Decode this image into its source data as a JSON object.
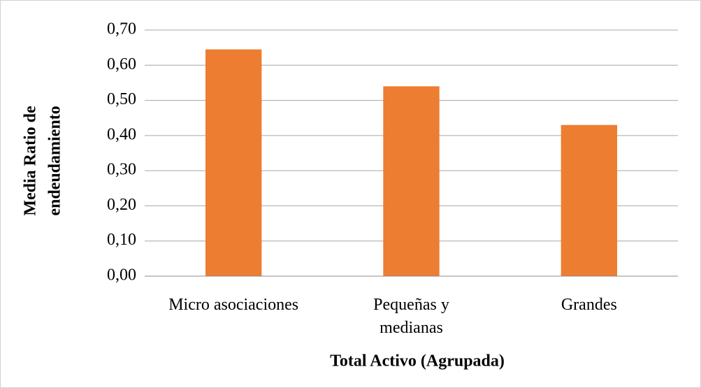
{
  "chart_data": {
    "type": "bar",
    "ylabel": [
      "Media Ratio de",
      "endeudamiento"
    ],
    "xlabel": "Total Activo (Agrupada)",
    "categories": [
      "Micro asociaciones",
      "Pequeñas y medianas",
      "Grandes"
    ],
    "values": [
      0.645,
      0.54,
      0.43
    ],
    "color": "#ed7d31",
    "ylim": [
      0,
      0.7
    ],
    "yticks": [
      {
        "value": 0,
        "label": "0,00"
      },
      {
        "value": 0.1,
        "label": "0,10"
      },
      {
        "value": 0.2,
        "label": "0,20"
      },
      {
        "value": 0.3,
        "label": "0,30"
      },
      {
        "value": 0.4,
        "label": "0,40"
      },
      {
        "value": 0.5,
        "label": "0,50"
      },
      {
        "value": 0.6,
        "label": "0,60"
      },
      {
        "value": 0.7,
        "label": "0,70"
      }
    ],
    "grid": true
  }
}
